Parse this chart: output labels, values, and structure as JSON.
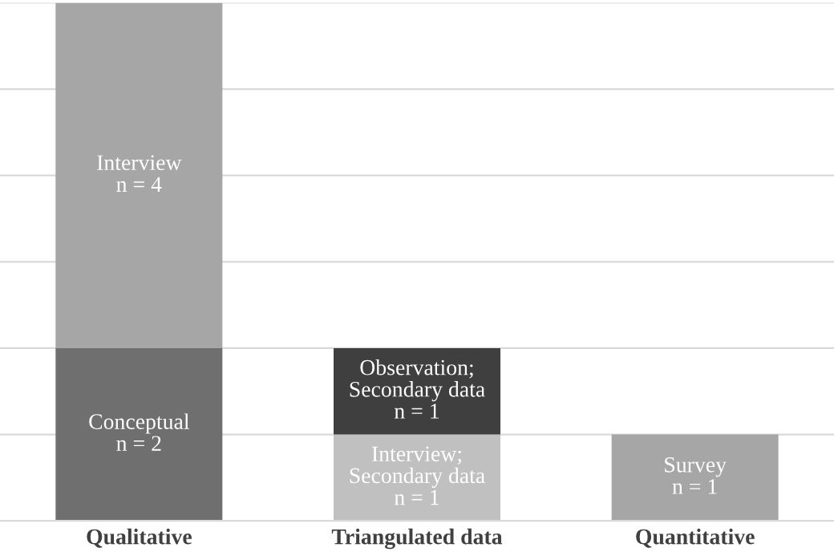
{
  "chart_data": {
    "type": "bar",
    "stacked": true,
    "categories": [
      "Qualitative",
      "Triangulated data",
      "Quantitative"
    ],
    "series": [
      {
        "colors": [
          "#6f6f6f",
          "#c0c0c0",
          "#a6a6a6"
        ],
        "values": [
          2,
          1,
          1
        ],
        "value_labels": [
          "Conceptual\nn = 2",
          "Interview;\nSecondary data\nn = 1",
          "Survey\nn = 1"
        ]
      },
      {
        "colors": [
          "#a6a6a6",
          "#3f3f3f",
          "#a6a6a6"
        ],
        "values": [
          4,
          1,
          null
        ],
        "value_labels": [
          "Interview\nn = 4",
          "Observation;\nSecondary data\nn = 1",
          null
        ]
      }
    ],
    "ylim": [
      0,
      6
    ],
    "yticks": [
      {
        "value": 0,
        "label": null
      },
      {
        "value": 1,
        "label": null
      },
      {
        "value": 2,
        "label": null
      },
      {
        "value": 3,
        "label": null
      },
      {
        "value": 4,
        "label": null
      },
      {
        "value": 5,
        "label": null
      },
      {
        "value": 6,
        "label": null
      }
    ],
    "tick_labels": "x",
    "grid": "y"
  }
}
